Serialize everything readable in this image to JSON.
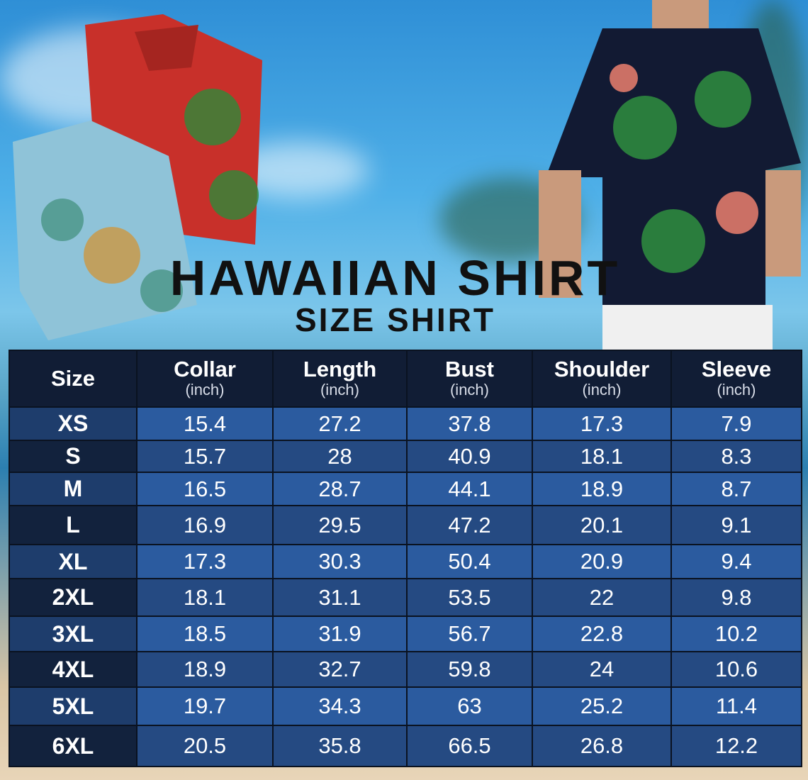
{
  "title": "HAWAIIAN SHIRT",
  "subtitle": "SIZE SHIRT",
  "colors": {
    "header_bg": "#111d35",
    "row_light": "#2b5b9f",
    "row_dark": "#254a82",
    "size_col_light": "#1e3d6c",
    "size_col_dark": "#12223d"
  },
  "table": {
    "headers": [
      {
        "label": "Size",
        "unit": ""
      },
      {
        "label": "Collar",
        "unit": "(inch)"
      },
      {
        "label": "Length",
        "unit": "(inch)"
      },
      {
        "label": "Bust",
        "unit": "(inch)"
      },
      {
        "label": "Shoulder",
        "unit": "(inch)"
      },
      {
        "label": "Sleeve",
        "unit": "(inch)"
      }
    ],
    "rows": [
      [
        "XS",
        "15.4",
        "27.2",
        "37.8",
        "17.3",
        "7.9"
      ],
      [
        "S",
        "15.7",
        "28",
        "40.9",
        "18.1",
        "8.3"
      ],
      [
        "M",
        "16.5",
        "28.7",
        "44.1",
        "18.9",
        "8.7"
      ],
      [
        "L",
        "16.9",
        "29.5",
        "47.2",
        "20.1",
        "9.1"
      ],
      [
        "XL",
        "17.3",
        "30.3",
        "50.4",
        "20.9",
        "9.4"
      ],
      [
        "2XL",
        "18.1",
        "31.1",
        "53.5",
        "22",
        "9.8"
      ],
      [
        "3XL",
        "18.5",
        "31.9",
        "56.7",
        "22.8",
        "10.2"
      ],
      [
        "4XL",
        "18.9",
        "32.7",
        "59.8",
        "24",
        "10.6"
      ],
      [
        "5XL",
        "19.7",
        "34.3",
        "63",
        "25.2",
        "11.4"
      ],
      [
        "6XL",
        "20.5",
        "35.8",
        "66.5",
        "26.8",
        "12.2"
      ]
    ]
  }
}
